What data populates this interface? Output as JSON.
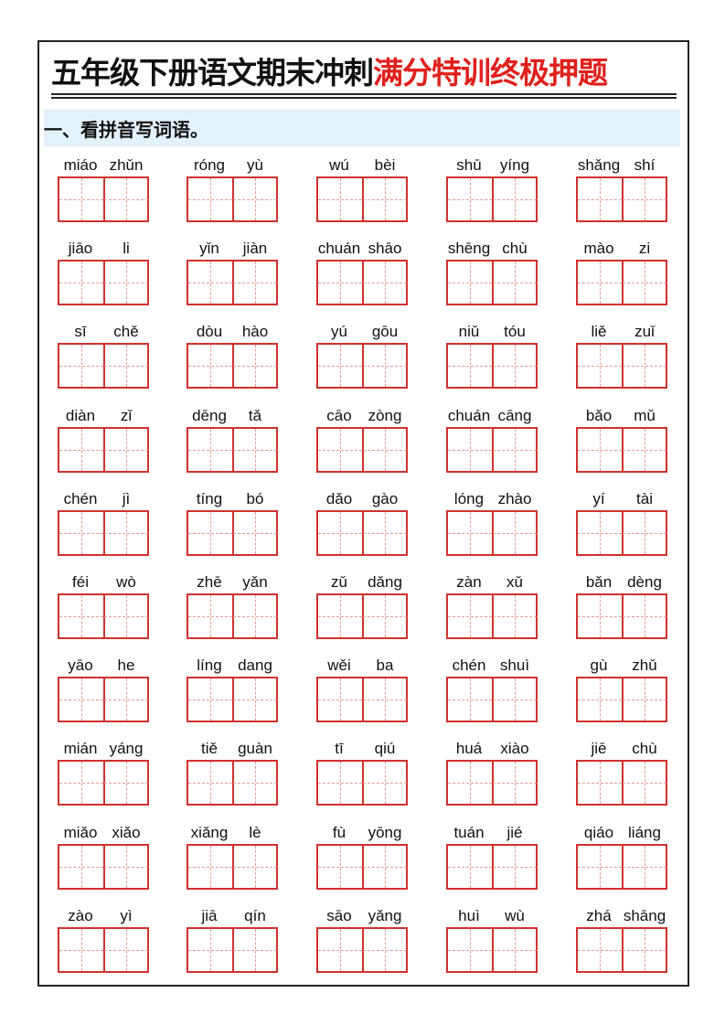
{
  "title": {
    "black": "五年级下册语文期末冲刺",
    "red": "满分特训终极押题"
  },
  "section": {
    "heading": "一、看拼音写词语。"
  },
  "colors": {
    "title_red": "#e0201c",
    "grid_red": "#d0312d",
    "section_bg": "#e3f1fb"
  },
  "rows": [
    [
      [
        "miáo",
        "zhǔn"
      ],
      [
        "róng",
        "yù"
      ],
      [
        "wú",
        "bèi"
      ],
      [
        "shū",
        "yíng"
      ],
      [
        "shǎng",
        "shí"
      ]
    ],
    [
      [
        "jiāo",
        "li"
      ],
      [
        "yǐn",
        "jiàn"
      ],
      [
        "chuán",
        "shāo"
      ],
      [
        "shēng",
        "chù"
      ],
      [
        "mào",
        "zi"
      ]
    ],
    [
      [
        "sī",
        "chě"
      ],
      [
        "dòu",
        "hào"
      ],
      [
        "yú",
        "gōu"
      ],
      [
        "niǔ",
        "tóu"
      ],
      [
        "liě",
        "zuǐ"
      ]
    ],
    [
      [
        "diàn",
        "zǐ"
      ],
      [
        "dēng",
        "tǎ"
      ],
      [
        "cāo",
        "zòng"
      ],
      [
        "chuán",
        "cāng"
      ],
      [
        "bǎo",
        "mǔ"
      ]
    ],
    [
      [
        "chén",
        "jì"
      ],
      [
        "tíng",
        "bó"
      ],
      [
        "dǎo",
        "gào"
      ],
      [
        "lóng",
        "zhào"
      ],
      [
        "yí",
        "tài"
      ]
    ],
    [
      [
        "féi",
        "wò"
      ],
      [
        "zhē",
        "yǎn"
      ],
      [
        "zǔ",
        "dǎng"
      ],
      [
        "zàn",
        "xǔ"
      ],
      [
        "bǎn",
        "dèng"
      ]
    ],
    [
      [
        "yāo",
        "he"
      ],
      [
        "líng",
        "dang"
      ],
      [
        "wěi",
        "ba"
      ],
      [
        "chén",
        "shuì"
      ],
      [
        "gù",
        "zhǔ"
      ]
    ],
    [
      [
        "mián",
        "yáng"
      ],
      [
        "tiě",
        "guàn"
      ],
      [
        "tī",
        "qiú"
      ],
      [
        "huá",
        "xiào"
      ],
      [
        "jiē",
        "chù"
      ]
    ],
    [
      [
        "miǎo",
        "xiǎo"
      ],
      [
        "xiǎng",
        "lè"
      ],
      [
        "fù",
        "yōng"
      ],
      [
        "tuán",
        "jié"
      ],
      [
        "qiáo",
        "liáng"
      ]
    ],
    [
      [
        "zào",
        "yì"
      ],
      [
        "jiā",
        "qín"
      ],
      [
        "sāo",
        "yǎng"
      ],
      [
        "huì",
        "wù"
      ],
      [
        "zhá",
        "shāng"
      ]
    ]
  ]
}
